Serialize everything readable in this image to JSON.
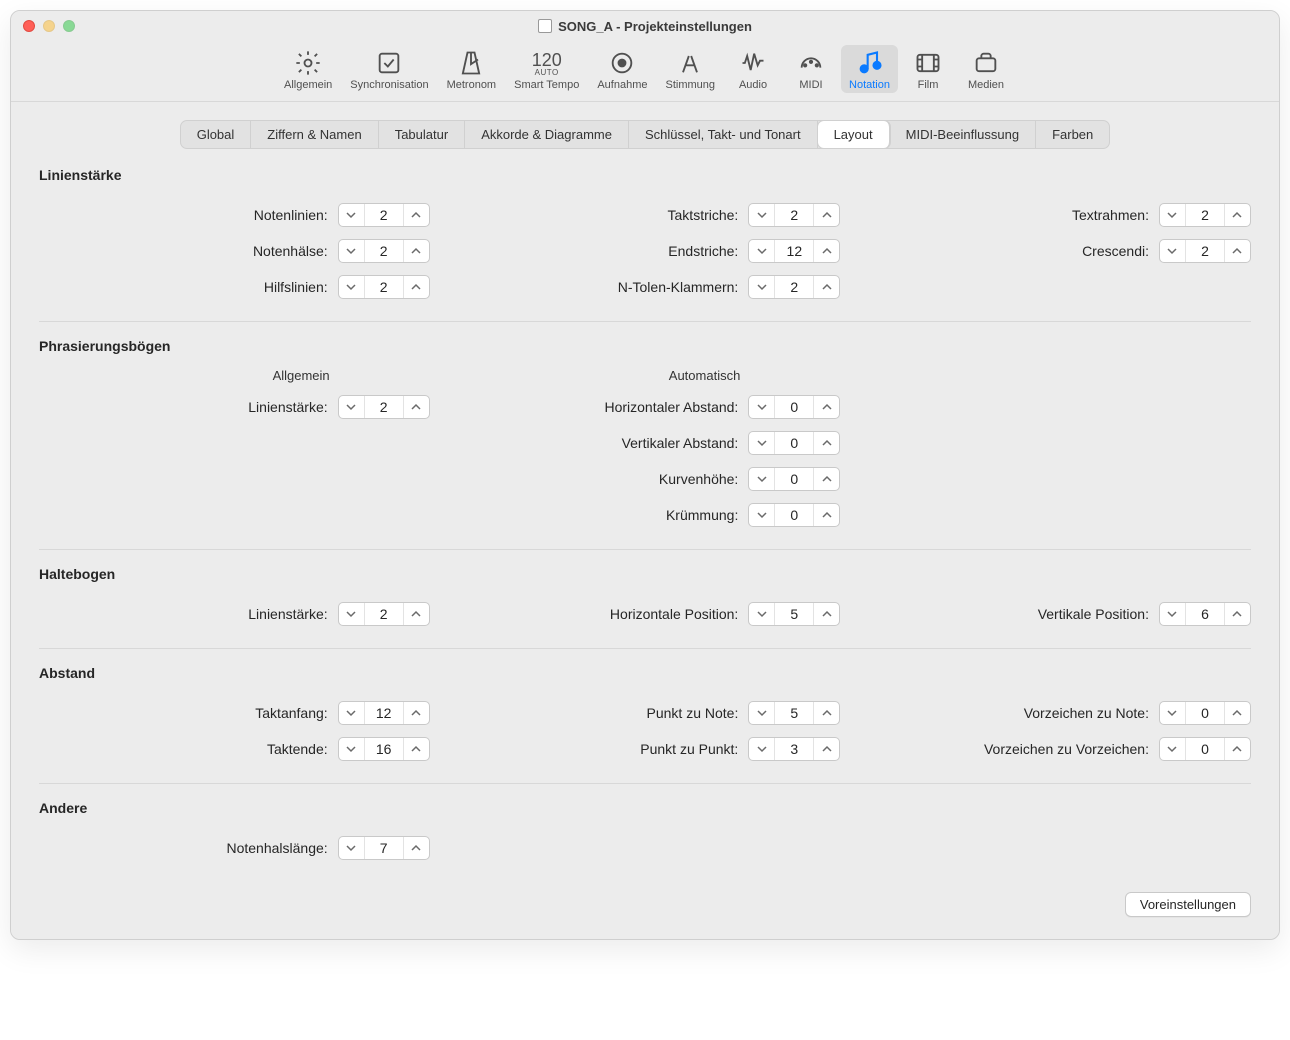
{
  "window": {
    "title": "SONG_A - Projekteinstellungen"
  },
  "toolbar": [
    {
      "key": "general",
      "label": "Allgemein",
      "active": false
    },
    {
      "key": "sync",
      "label": "Synchronisation",
      "active": false
    },
    {
      "key": "metronome",
      "label": "Metronom",
      "active": false
    },
    {
      "key": "smart-tempo",
      "label": "Smart Tempo",
      "active": false,
      "tempo": "120",
      "auto": "AUTO"
    },
    {
      "key": "recording",
      "label": "Aufnahme",
      "active": false
    },
    {
      "key": "tuning",
      "label": "Stimmung",
      "active": false
    },
    {
      "key": "audio",
      "label": "Audio",
      "active": false
    },
    {
      "key": "midi",
      "label": "MIDI",
      "active": false
    },
    {
      "key": "notation",
      "label": "Notation",
      "active": true
    },
    {
      "key": "film",
      "label": "Film",
      "active": false
    },
    {
      "key": "media",
      "label": "Medien",
      "active": false
    }
  ],
  "tabs": [
    {
      "key": "global",
      "label": "Global"
    },
    {
      "key": "numbers",
      "label": "Ziffern & Namen"
    },
    {
      "key": "tab",
      "label": "Tabulatur"
    },
    {
      "key": "chords",
      "label": "Akkorde & Diagramme"
    },
    {
      "key": "clefs",
      "label": "Schlüssel, Takt- und Tonart"
    },
    {
      "key": "layout",
      "label": "Layout",
      "active": true
    },
    {
      "key": "midi",
      "label": "MIDI-Beeinflussung"
    },
    {
      "key": "colors",
      "label": "Farben"
    }
  ],
  "sections": {
    "linien": {
      "title": "Linienstärke",
      "c1": [
        {
          "label": "Notenlinien:",
          "value": "2"
        },
        {
          "label": "Notenhälse:",
          "value": "2"
        },
        {
          "label": "Hilfslinien:",
          "value": "2"
        }
      ],
      "c2": [
        {
          "label": "Taktstriche:",
          "value": "2"
        },
        {
          "label": "Endstriche:",
          "value": "12"
        },
        {
          "label": "N-Tolen-Klammern:",
          "value": "2"
        }
      ],
      "c3": [
        {
          "label": "Textrahmen:",
          "value": "2"
        },
        {
          "label": "Crescendi:",
          "value": "2"
        }
      ]
    },
    "phras": {
      "title": "Phrasierungsbögen",
      "h1": "Allgemein",
      "h2": "Automatisch",
      "c1": [
        {
          "label": "Linienstärke:",
          "value": "2"
        }
      ],
      "c2": [
        {
          "label": "Horizontaler Abstand:",
          "value": "0"
        },
        {
          "label": "Vertikaler Abstand:",
          "value": "0"
        },
        {
          "label": "Kurvenhöhe:",
          "value": "0"
        },
        {
          "label": "Krümmung:",
          "value": "0"
        }
      ]
    },
    "halte": {
      "title": "Haltebogen",
      "c1": [
        {
          "label": "Linienstärke:",
          "value": "2"
        }
      ],
      "c2": [
        {
          "label": "Horizontale Position:",
          "value": "5"
        }
      ],
      "c3": [
        {
          "label": "Vertikale Position:",
          "value": "6"
        }
      ]
    },
    "abstand": {
      "title": "Abstand",
      "c1": [
        {
          "label": "Taktanfang:",
          "value": "12"
        },
        {
          "label": "Taktende:",
          "value": "16"
        }
      ],
      "c2": [
        {
          "label": "Punkt zu Note:",
          "value": "5"
        },
        {
          "label": "Punkt zu Punkt:",
          "value": "3"
        }
      ],
      "c3": [
        {
          "label": "Vorzeichen zu Note:",
          "value": "0"
        },
        {
          "label": "Vorzeichen zu Vorzeichen:",
          "value": "0"
        }
      ]
    },
    "andere": {
      "title": "Andere",
      "c1": [
        {
          "label": "Notenhalslänge:",
          "value": "7"
        }
      ]
    }
  },
  "footer": {
    "defaults": "Voreinstellungen"
  }
}
